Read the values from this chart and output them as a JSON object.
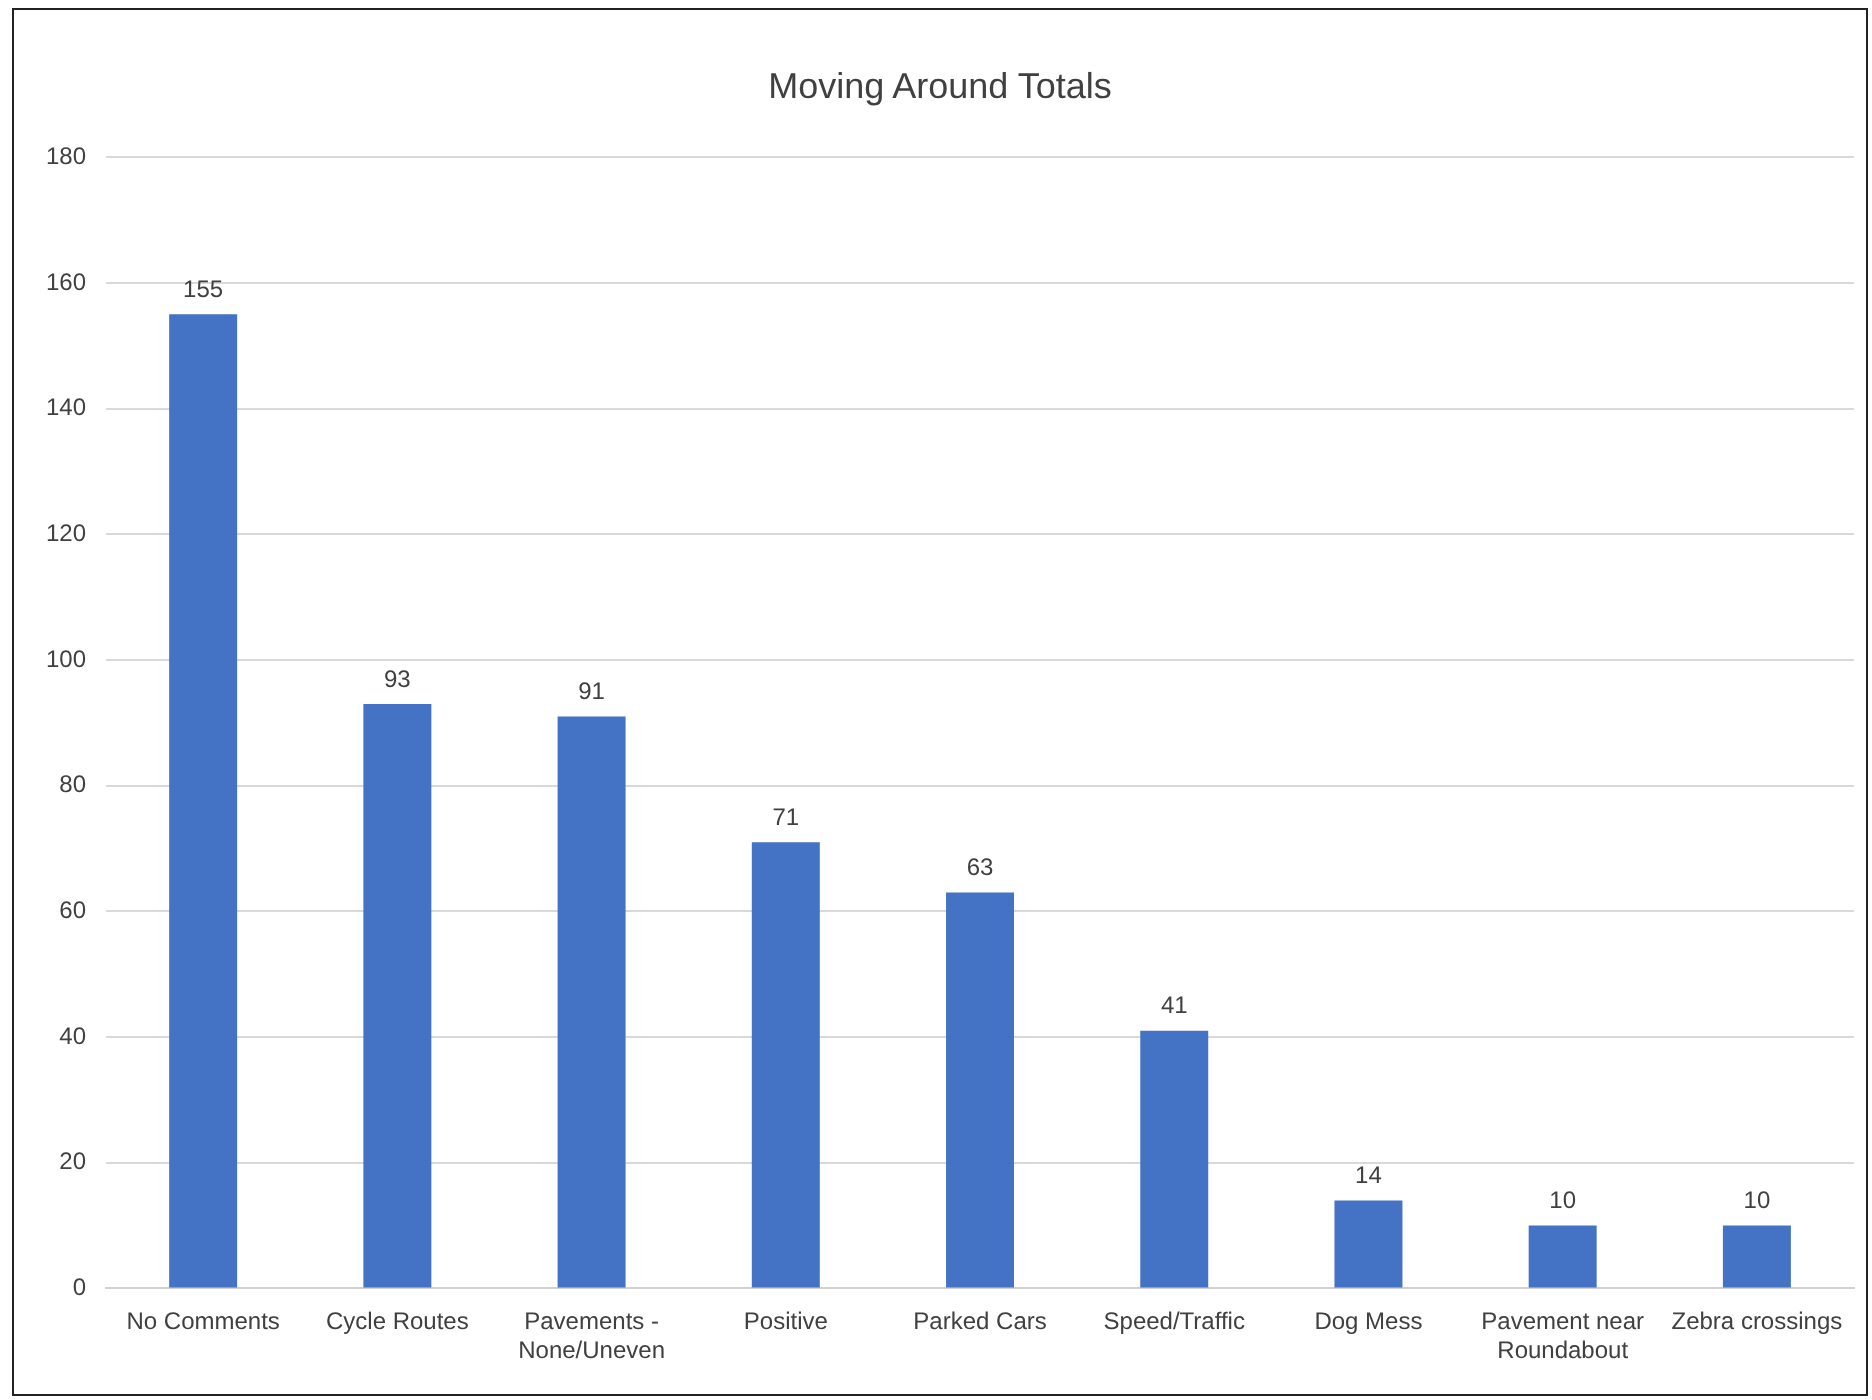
{
  "chart_data": {
    "type": "bar",
    "title": "Moving Around Totals",
    "categories": [
      "No Comments",
      "Cycle Routes",
      "Pavements - None/Uneven",
      "Positive",
      "Parked Cars",
      "Speed/Traffic",
      "Dog Mess",
      "Pavement near Roundabout",
      "Zebra crossings"
    ],
    "values": [
      155,
      93,
      91,
      71,
      63,
      41,
      14,
      10,
      10
    ],
    "color": "#4472c4",
    "ylim": [
      0,
      180
    ],
    "yticks": [
      0,
      20,
      40,
      60,
      80,
      100,
      120,
      140,
      160,
      180
    ],
    "grid": "y",
    "data_labels": true,
    "legend": false
  }
}
